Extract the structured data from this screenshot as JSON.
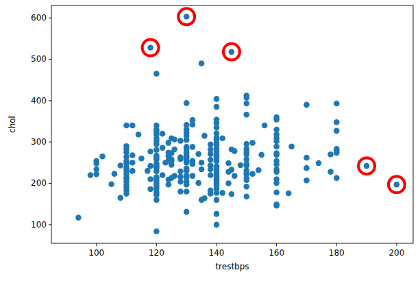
{
  "chart_data": {
    "type": "scatter",
    "x_label": "trestbps",
    "y_label": "chol",
    "xlim": [
      85,
      205.5
    ],
    "ylim": [
      55,
      630
    ],
    "xticks": [
      100,
      120,
      140,
      160,
      180,
      200
    ],
    "yticks": [
      100,
      200,
      300,
      400,
      500,
      600
    ],
    "grid": false,
    "series": [
      {
        "color": "#ff0000",
        "marker": "ring",
        "x": [
          118,
          130,
          145,
          190,
          200
        ],
        "values": [
          528,
          603,
          518,
          242,
          197
        ]
      },
      {
        "color": "#1f77b4",
        "marker": "circle",
        "x": [
          94,
          98,
          100,
          100,
          100,
          100,
          102,
          105,
          106,
          108,
          108,
          110,
          110,
          110,
          110,
          110,
          110,
          110,
          110,
          110,
          110,
          110,
          110,
          110,
          110,
          110,
          110,
          110,
          110,
          112,
          112,
          112,
          112,
          114,
          115,
          117,
          118,
          118,
          118,
          118,
          118,
          120,
          120,
          120,
          120,
          120,
          120,
          120,
          120,
          120,
          120,
          120,
          120,
          120,
          120,
          120,
          120,
          120,
          120,
          120,
          120,
          120,
          120,
          120,
          120,
          120,
          120,
          120,
          122,
          122,
          122,
          123,
          124,
          124,
          124,
          124,
          124,
          124,
          125,
          125,
          125,
          125,
          125,
          125,
          126,
          126,
          126,
          128,
          128,
          128,
          128,
          128,
          128,
          128,
          130,
          130,
          130,
          130,
          130,
          130,
          130,
          130,
          130,
          130,
          130,
          130,
          130,
          130,
          130,
          130,
          130,
          130,
          130,
          130,
          130,
          130,
          130,
          130,
          132,
          132,
          132,
          132,
          132,
          132,
          134,
          134,
          135,
          135,
          135,
          135,
          136,
          136,
          138,
          138,
          138,
          138,
          138,
          138,
          138,
          138,
          138,
          140,
          140,
          140,
          140,
          140,
          140,
          140,
          140,
          140,
          140,
          140,
          140,
          140,
          140,
          140,
          140,
          140,
          140,
          140,
          140,
          140,
          140,
          140,
          140,
          140,
          140,
          140,
          140,
          140,
          140,
          140,
          140,
          142,
          142,
          144,
          144,
          144,
          145,
          145,
          145,
          145,
          146,
          146,
          148,
          150,
          150,
          150,
          150,
          150,
          150,
          150,
          150,
          150,
          150,
          150,
          150,
          150,
          150,
          150,
          150,
          150,
          150,
          152,
          152,
          154,
          155,
          156,
          160,
          160,
          160,
          160,
          160,
          160,
          160,
          160,
          160,
          160,
          160,
          160,
          160,
          160,
          160,
          160,
          160,
          160,
          164,
          165,
          170,
          170,
          170,
          170,
          174,
          178,
          178,
          180,
          180,
          180,
          180,
          180,
          180,
          180,
          190,
          200
        ],
        "values": [
          117,
          220,
          222,
          234,
          248,
          254,
          265,
          198,
          223,
          165,
          243,
          175,
          183,
          190,
          197,
          205,
          211,
          214,
          222,
          229,
          235,
          239,
          248,
          254,
          264,
          275,
          283,
          290,
          340,
          230,
          250,
          268,
          340,
          318,
          260,
          230,
          186,
          210,
          242,
          277,
          528,
          84,
          160,
          172,
          178,
          187,
          193,
          199,
          205,
          211,
          215,
          229,
          236,
          240,
          244,
          248,
          258,
          263,
          267,
          281,
          295,
          302,
          308,
          318,
          325,
          330,
          340,
          465,
          220,
          286,
          320,
          250,
          197,
          209,
          255,
          266,
          274,
          298,
          213,
          245,
          254,
          258,
          273,
          309,
          218,
          282,
          306,
          180,
          204,
          216,
          229,
          259,
          263,
          303,
          131,
          180,
          197,
          204,
          214,
          219,
          231,
          236,
          250,
          254,
          256,
          262,
          264,
          269,
          275,
          283,
          288,
          305,
          315,
          322,
          330,
          341,
          394,
          603,
          218,
          247,
          254,
          288,
          342,
          353,
          201,
          271,
          160,
          234,
          250,
          490,
          164,
          315,
          175,
          183,
          220,
          234,
          243,
          257,
          271,
          282,
          294,
          100,
          126,
          160,
          177,
          187,
          195,
          199,
          203,
          207,
          211,
          217,
          221,
          226,
          233,
          239,
          241,
          254,
          261,
          265,
          268,
          276,
          284,
          293,
          298,
          306,
          311,
          321,
          335,
          346,
          354,
          385,
          404,
          177,
          309,
          200,
          228,
          249,
          174,
          233,
          282,
          518,
          218,
          278,
          244,
          168,
          192,
          208,
          212,
          222,
          225,
          231,
          243,
          247,
          258,
          270,
          276,
          283,
          295,
          366,
          393,
          407,
          412,
          223,
          298,
          232,
          269,
          340,
          146,
          149,
          178,
          201,
          210,
          228,
          234,
          246,
          254,
          269,
          273,
          289,
          302,
          309,
          318,
          330,
          354,
          360,
          176,
          289,
          207,
          237,
          262,
          390,
          249,
          228,
          270,
          213,
          274,
          280,
          283,
          327,
          348,
          393,
          242,
          197
        ]
      }
    ]
  }
}
